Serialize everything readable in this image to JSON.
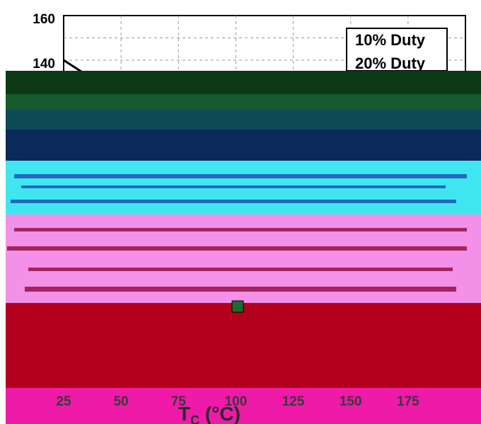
{
  "chart_data": {
    "type": "line",
    "title": "",
    "xlabel": "T",
    "xlabel_subscript": "C",
    "xlabel_unit": " (°C)",
    "ylabel": "",
    "xlim": [
      25,
      200
    ],
    "ylim": [
      0,
      160
    ],
    "x_ticks": [
      "25",
      "50",
      "75",
      "100",
      "125",
      "150",
      "175"
    ],
    "y_ticks": [
      "160",
      "140"
    ],
    "grid": "dashed",
    "legend_position": "top-right",
    "series": [
      {
        "name": "10% Duty",
        "x": [
          25,
          40
        ],
        "y": [
          140,
          130
        ]
      },
      {
        "name": "20% Duty",
        "x": [],
        "y": []
      }
    ],
    "colors": {
      "band_dark_green": "#0d3a14",
      "band_green": "#175a2e",
      "band_teal": "#0c4a55",
      "band_navy": "#0a2a5a",
      "band_cyan": "#3fe6f0",
      "band_pink": "#f390e8",
      "band_red": "#b3001f",
      "band_magenta": "#ee1aa8"
    }
  }
}
